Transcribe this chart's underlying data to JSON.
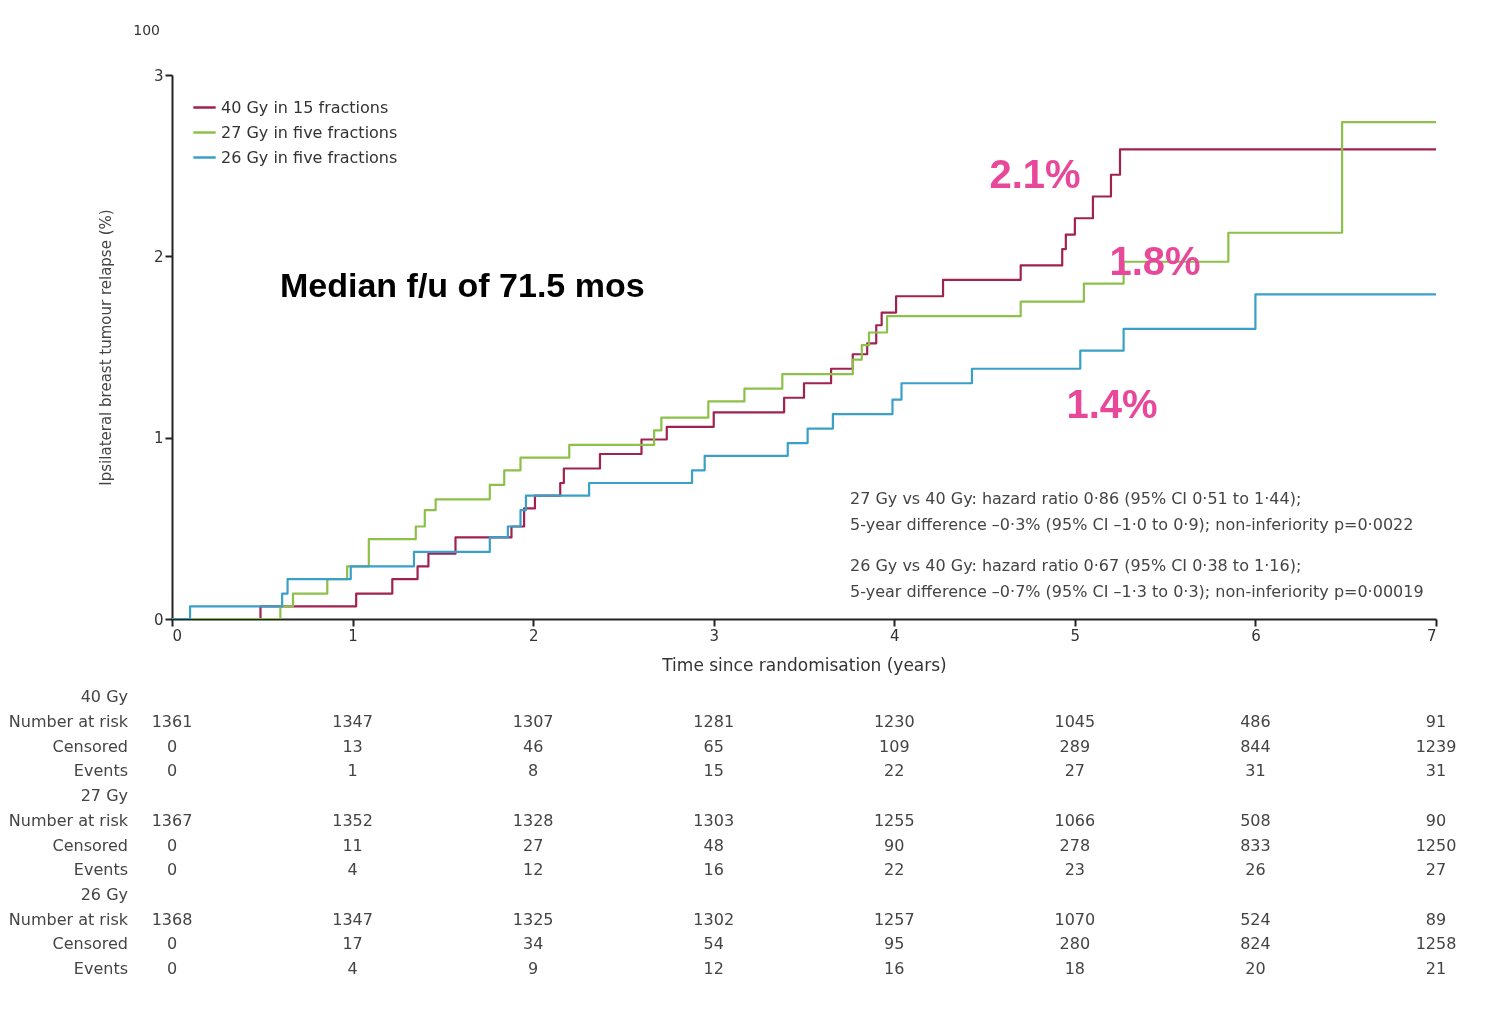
{
  "chart_data": {
    "type": "step",
    "xlabel": "Time since randomisation (years)",
    "ylabel": "Ipsilateral breast tumour relapse (%)",
    "xlim": [
      0,
      7
    ],
    "ylim": [
      0,
      3
    ],
    "xticks": [
      0,
      1,
      2,
      3,
      4,
      5,
      6,
      7
    ],
    "yticks": [
      0,
      1,
      2,
      3
    ],
    "grid": false,
    "legend": "top left",
    "series": [
      {
        "name": "40 Gy in 15 fractions",
        "color": "#a0224f",
        "x": [
          0.1,
          0.49,
          1.02,
          1.22,
          1.36,
          1.42,
          1.57,
          1.88,
          1.95,
          2.01,
          2.15,
          2.17,
          2.37,
          2.6,
          2.74,
          3.0,
          3.39,
          3.5,
          3.65,
          3.77,
          3.85,
          3.9,
          3.93,
          4.01,
          4.27,
          4.7,
          4.93,
          4.95,
          5.0,
          5.1,
          5.2,
          5.25,
          7
        ],
        "values": [
          0,
          0.07,
          0.14,
          0.22,
          0.29,
          0.36,
          0.45,
          0.51,
          0.61,
          0.68,
          0.75,
          0.83,
          0.91,
          0.99,
          1.06,
          1.14,
          1.22,
          1.3,
          1.38,
          1.46,
          1.52,
          1.62,
          1.69,
          1.78,
          1.87,
          1.95,
          2.04,
          2.12,
          2.21,
          2.33,
          2.45,
          2.59,
          2.59
        ]
      },
      {
        "name": "27 Gy in five fractions",
        "color": "#8dc04a",
        "x": [
          0.1,
          0.6,
          0.67,
          0.86,
          0.97,
          1.09,
          1.35,
          1.4,
          1.46,
          1.76,
          1.84,
          1.93,
          2.2,
          2.67,
          2.71,
          2.97,
          3.17,
          3.38,
          3.77,
          3.82,
          3.86,
          3.96,
          4.7,
          5.05,
          5.27,
          5.85,
          6.48,
          7
        ],
        "values": [
          0,
          0.07,
          0.14,
          0.22,
          0.29,
          0.44,
          0.51,
          0.6,
          0.66,
          0.74,
          0.82,
          0.89,
          0.96,
          1.04,
          1.11,
          1.2,
          1.27,
          1.35,
          1.43,
          1.51,
          1.58,
          1.67,
          1.75,
          1.85,
          1.97,
          2.13,
          2.74,
          2.74
        ]
      },
      {
        "name": "26 Gy in five fractions",
        "color": "#3aa0c8",
        "x": [
          0,
          0.1,
          0.61,
          0.64,
          0.99,
          1.34,
          1.76,
          1.86,
          1.93,
          1.96,
          2.31,
          2.88,
          2.95,
          3.41,
          3.52,
          3.66,
          3.99,
          4.04,
          4.43,
          5.03,
          5.27,
          6.0,
          7
        ],
        "values": [
          0,
          0.07,
          0.14,
          0.22,
          0.29,
          0.37,
          0.45,
          0.51,
          0.6,
          0.68,
          0.75,
          0.82,
          0.9,
          0.97,
          1.05,
          1.13,
          1.21,
          1.3,
          1.38,
          1.48,
          1.6,
          1.79,
          1.79
        ]
      }
    ],
    "annotations": [
      "Median f/u of 71.5 mos",
      "27 Gy vs 40 Gy: hazard ratio 0·86 (95% CI 0·51 to 1·44);",
      "5-year difference –0·3% (95% CI –1·0 to 0·9); non-inferiority p=0·0022",
      "26 Gy vs 40 Gy: hazard ratio 0·67 (95% CI 0·38 to 1·16);",
      "5-year difference –0·7% (95% CI –1·3 to 0·3); non-inferiority p=0·00019",
      "100",
      "2.1%",
      "1.8%",
      "1.4%",
      "40 Gy",
      "Number at risk",
      "1361",
      "1347",
      "1307",
      "1281",
      "1230",
      "1045",
      "486",
      "91",
      "Censored",
      "0",
      "13",
      "46",
      "65",
      "109",
      "289",
      "844",
      "1239",
      "Events",
      "0",
      "1",
      "8",
      "15",
      "22",
      "27",
      "31",
      "31",
      "27 Gy",
      "Number at risk",
      "1367",
      "1352",
      "1328",
      "1303",
      "1255",
      "1066",
      "508",
      "90",
      "Censored",
      "0",
      "11",
      "27",
      "48",
      "90",
      "278",
      "833",
      "1250",
      "Events",
      "0",
      "4",
      "12",
      "16",
      "22",
      "23",
      "26",
      "27",
      "26 Gy",
      "Number at risk",
      "1368",
      "1347",
      "1325",
      "1302",
      "1257",
      "1070",
      "524",
      "89",
      "Censored",
      "0",
      "17",
      "34",
      "54",
      "95",
      "280",
      "824",
      "1258",
      "Events",
      "0",
      "4",
      "9",
      "12",
      "16",
      "18",
      "20",
      "21"
    ]
  }
}
